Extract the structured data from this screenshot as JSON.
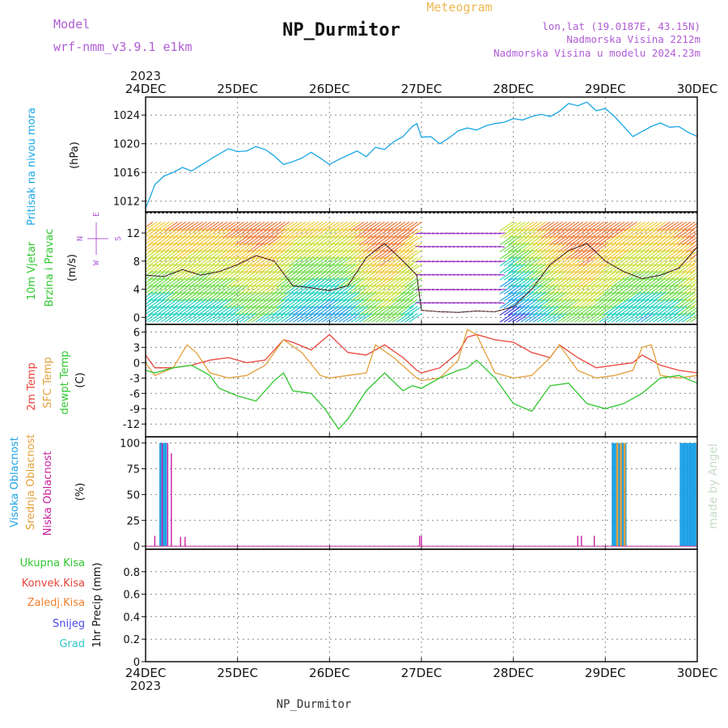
{
  "header": {
    "model_label": "Model",
    "model_name": "wrf-nmm_v3.9.1 e1km",
    "title": "NP_Durmitor",
    "meteogram_label": "Meteogram",
    "coords": "lon,lat (19.0187E, 43.15N)",
    "elevation": "Nadmorska Visina 2212m",
    "model_elevation": "Nadmorska Visina u modelu 2024.23m",
    "year_top": "2023",
    "year_bottom": "2023",
    "footer_station": "NP_Durmitor",
    "credit": "made by Angel"
  },
  "colors": {
    "pressure": "#19a7e6",
    "temp2m": "#e8443a",
    "sfc_temp": "#e3a03a",
    "dewpoint": "#2fc72f",
    "high_cloud": "#1ea2e6",
    "mid_cloud": "#e3a03a",
    "low_cloud": "#c81f9e",
    "header_purple": "#b05cd6",
    "meteogram_orange": "#f0b850",
    "precip_total": "#2fc72f",
    "precip_conv": "#e8443a",
    "precip_strat": "#f08030",
    "precip_snow": "#4a4ae8",
    "precip_hail": "#2fc7c7"
  },
  "chart_data": [
    {
      "type": "line",
      "panel": "pressure",
      "ylabel_name": "Pritisak na nivou mora",
      "ylabel_unit": "(hPa)",
      "x_ticks": [
        "24DEC",
        "25DEC",
        "26DEC",
        "27DEC",
        "28DEC",
        "29DEC",
        "30DEC"
      ],
      "ylim": [
        1010.5,
        1026.5
      ],
      "y_ticks": [
        "1012",
        "1016",
        "1020",
        "1024"
      ],
      "y_tick_values": [
        1012,
        1016,
        1020,
        1024
      ],
      "grid": true,
      "series": [
        {
          "x": [
            0,
            0.05,
            0.1,
            0.2,
            0.3,
            0.4,
            0.5,
            0.6,
            0.75,
            0.9,
            1.0,
            1.1,
            1.2,
            1.3,
            1.4,
            1.5,
            1.6,
            1.7,
            1.8,
            1.9,
            2.0,
            2.1,
            2.2,
            2.3,
            2.4,
            2.5,
            2.6,
            2.7,
            2.8,
            2.9,
            2.95,
            3.0,
            3.1,
            3.2,
            3.3,
            3.4,
            3.5,
            3.6,
            3.7,
            3.8,
            3.9,
            4.0,
            4.1,
            4.2,
            4.3,
            4.4,
            4.5,
            4.6,
            4.7,
            4.8,
            4.9,
            5.0,
            5.1,
            5.2,
            5.3,
            5.4,
            5.5,
            5.6,
            5.7,
            5.8,
            5.9,
            6.0
          ],
          "values": [
            1011.0,
            1012.6,
            1014.3,
            1015.5,
            1016.0,
            1016.7,
            1016.2,
            1017.0,
            1018.2,
            1019.3,
            1018.9,
            1019.0,
            1019.6,
            1019.2,
            1018.3,
            1017.1,
            1017.5,
            1018.0,
            1018.8,
            1018.0,
            1017.1,
            1017.8,
            1018.4,
            1019.0,
            1018.2,
            1019.5,
            1019.2,
            1020.3,
            1021.0,
            1022.4,
            1022.8,
            1020.9,
            1021.0,
            1020.0,
            1020.8,
            1021.8,
            1022.2,
            1021.9,
            1022.5,
            1022.8,
            1023.0,
            1023.5,
            1023.3,
            1023.8,
            1024.1,
            1023.8,
            1024.5,
            1025.6,
            1025.3,
            1025.8,
            1024.6,
            1024.9,
            1023.8,
            1022.4,
            1021.0,
            1021.7,
            1022.4,
            1022.9,
            1022.3,
            1022.4,
            1021.6,
            1021.0
          ]
        }
      ]
    },
    {
      "type": "line",
      "panel": "wind",
      "ylabel_name_1": "10m Vjetar",
      "ylabel_name_2": "Brzina i Pravac",
      "ylabel_unit": "(m/s)",
      "compass_w": "W",
      "compass_e": "E",
      "compass_n": "N",
      "compass_s": "S",
      "ylim": [
        -1,
        15
      ],
      "y_ticks": [
        "0",
        "4",
        "8",
        "12"
      ],
      "y_tick_values": [
        0,
        4,
        8,
        12
      ],
      "grid": true,
      "series": [
        {
          "x": [
            0,
            0.2,
            0.4,
            0.6,
            0.8,
            1.0,
            1.2,
            1.4,
            1.6,
            1.8,
            2.0,
            2.2,
            2.4,
            2.6,
            2.8,
            2.95,
            3.0,
            3.2,
            3.4,
            3.6,
            3.8,
            4.0,
            4.2,
            4.4,
            4.6,
            4.8,
            5.0,
            5.2,
            5.4,
            5.6,
            5.8,
            6.0
          ],
          "values": [
            6.0,
            5.8,
            6.8,
            6.0,
            6.5,
            7.5,
            8.8,
            8.0,
            4.5,
            4.2,
            3.8,
            4.5,
            8.5,
            10.5,
            8.0,
            6.0,
            1.0,
            0.8,
            0.7,
            0.9,
            0.8,
            1.5,
            4.0,
            7.5,
            9.5,
            10.5,
            8.0,
            6.5,
            5.5,
            6.0,
            7.0,
            10.0
          ]
        }
      ]
    },
    {
      "type": "line",
      "panel": "temperature",
      "ylabel_name_1": "2m Temp",
      "ylabel_name_2": "SFC Temp",
      "ylabel_name_3": "dewpt Temp",
      "ylabel_unit": "(C)",
      "ylim": [
        -14.5,
        7.5
      ],
      "y_ticks": [
        "6",
        "3",
        "0",
        "-3",
        "-6",
        "-9",
        "-12"
      ],
      "y_tick_values": [
        6,
        3,
        0,
        -3,
        -6,
        -9,
        -12
      ],
      "grid": true,
      "series": [
        {
          "key": "temp2m",
          "x": [
            0,
            0.1,
            0.3,
            0.5,
            0.7,
            0.9,
            1.1,
            1.3,
            1.5,
            1.6,
            1.8,
            2.0,
            2.2,
            2.4,
            2.6,
            2.8,
            2.95,
            3.0,
            3.2,
            3.4,
            3.5,
            3.6,
            3.8,
            4.0,
            4.2,
            4.4,
            4.5,
            4.7,
            4.9,
            5.1,
            5.3,
            5.4,
            5.6,
            5.8,
            6.0
          ],
          "values": [
            1.5,
            -1.0,
            -1.0,
            -0.5,
            0.5,
            1.0,
            0.0,
            0.5,
            4.5,
            4.0,
            2.5,
            5.5,
            2.0,
            1.5,
            3.5,
            1.0,
            -1.5,
            -2.0,
            -1.0,
            2.0,
            5.0,
            5.5,
            4.5,
            4.0,
            2.0,
            1.0,
            3.5,
            1.0,
            -1.0,
            -0.5,
            0.0,
            1.5,
            -0.5,
            -1.5,
            -2.0
          ]
        },
        {
          "key": "sfc_temp",
          "x": [
            0,
            0.1,
            0.3,
            0.45,
            0.55,
            0.7,
            0.9,
            1.1,
            1.3,
            1.5,
            1.7,
            1.9,
            2.0,
            2.2,
            2.4,
            2.5,
            2.7,
            2.95,
            3.0,
            3.2,
            3.4,
            3.5,
            3.6,
            3.8,
            4.0,
            4.2,
            4.4,
            4.5,
            4.7,
            4.9,
            5.1,
            5.3,
            5.4,
            5.5,
            5.6,
            5.8,
            6.0
          ],
          "values": [
            0.0,
            -2.5,
            -1.0,
            3.5,
            2.0,
            -2.0,
            -3.0,
            -2.5,
            -0.5,
            4.5,
            2.0,
            -2.5,
            -3.0,
            -2.5,
            -2.0,
            3.5,
            1.0,
            -3.0,
            -3.5,
            -3.0,
            0.5,
            6.5,
            5.5,
            -2.0,
            -3.0,
            -2.5,
            1.0,
            3.5,
            -1.5,
            -3.0,
            -2.5,
            -1.5,
            3.0,
            3.5,
            -2.5,
            -3.0,
            -2.5
          ]
        },
        {
          "key": "dewpoint",
          "x": [
            0,
            0.1,
            0.3,
            0.5,
            0.7,
            0.8,
            1.0,
            1.2,
            1.4,
            1.5,
            1.6,
            1.8,
            1.95,
            2.1,
            2.2,
            2.4,
            2.6,
            2.8,
            2.9,
            3.0,
            3.2,
            3.4,
            3.5,
            3.6,
            3.8,
            4.0,
            4.2,
            4.4,
            4.6,
            4.8,
            5.0,
            5.2,
            5.4,
            5.6,
            5.8,
            6.0
          ],
          "values": [
            -1.5,
            -2.0,
            -1.0,
            -0.5,
            -2.5,
            -5.0,
            -6.5,
            -7.5,
            -3.5,
            -2.0,
            -5.5,
            -6.0,
            -9.0,
            -13.0,
            -11.0,
            -5.5,
            -2.0,
            -5.5,
            -4.5,
            -5.0,
            -3.0,
            -1.5,
            -1.0,
            0.5,
            -3.0,
            -8.0,
            -9.5,
            -4.5,
            -4.0,
            -8.0,
            -9.0,
            -8.0,
            -6.0,
            -3.0,
            -2.5,
            -4.0
          ]
        }
      ]
    },
    {
      "type": "bar",
      "panel": "clouds",
      "ylabel_name_1": "Visoka Oblacnost",
      "ylabel_name_2": "Srednja Oblacnost",
      "ylabel_name_3": "Niska Oblacnost",
      "ylabel_unit": "(%)",
      "ylim": [
        -3,
        106
      ],
      "y_ticks": [
        "0",
        "25",
        "50",
        "75",
        "100"
      ],
      "y_tick_values": [
        0,
        25,
        50,
        75,
        100
      ],
      "grid": true,
      "series": [
        {
          "key": "high_cloud",
          "x": [
            0.16,
            0.18,
            0.2,
            0.22,
            5.08,
            5.1,
            5.12,
            5.14,
            5.16,
            5.18,
            5.2,
            5.22,
            5.82,
            5.84,
            5.86,
            5.88,
            5.9,
            5.92,
            5.94,
            5.96,
            5.98
          ],
          "values": [
            100,
            100,
            100,
            100,
            100,
            100,
            100,
            100,
            100,
            100,
            100,
            100,
            100,
            100,
            100,
            100,
            100,
            100,
            100,
            100,
            100
          ]
        },
        {
          "key": "mid_cloud",
          "x": [
            5.13,
            5.17,
            5.21
          ],
          "values": [
            100,
            100,
            100
          ]
        },
        {
          "key": "low_cloud",
          "x": [
            0.1,
            0.18,
            0.24,
            0.28,
            0.38,
            0.43,
            2.98,
            3.0,
            4.7,
            4.74,
            4.88
          ],
          "values": [
            10,
            100,
            100,
            90,
            9,
            9,
            10,
            10,
            10,
            10,
            10
          ]
        }
      ]
    },
    {
      "type": "bar",
      "panel": "precip",
      "ylabel_unit": "1hr Precip (mm)",
      "legend": [
        "Ukupna Kisa",
        "Konvek.Kisa",
        "Zaledj.Kisa",
        "Snijeg",
        "Grad"
      ],
      "ylim": [
        0,
        1.0
      ],
      "y_ticks": [
        "0",
        "0.2",
        "0.4",
        "0.6",
        "0.8"
      ],
      "y_tick_values": [
        0,
        0.2,
        0.4,
        0.6,
        0.8
      ],
      "grid": true,
      "series": []
    }
  ]
}
